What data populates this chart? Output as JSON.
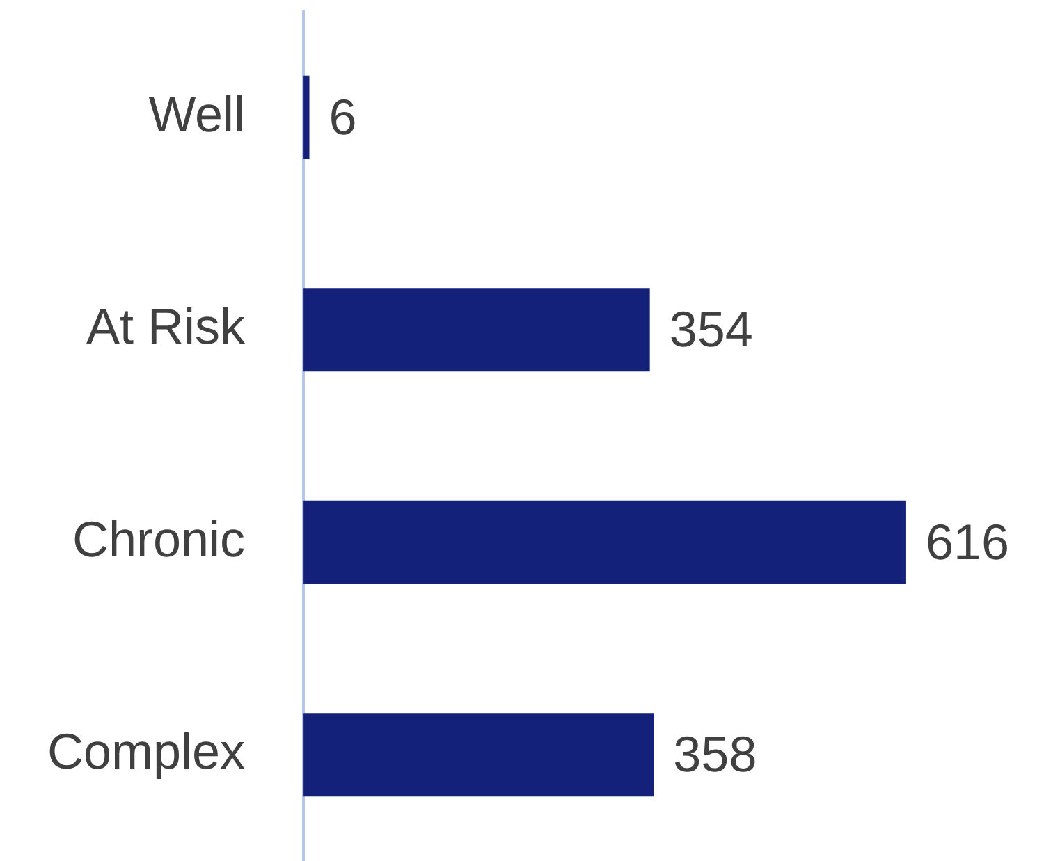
{
  "chart_data": {
    "type": "bar",
    "orientation": "horizontal",
    "categories": [
      "Well",
      "At Risk",
      "Chronic",
      "Complex"
    ],
    "values": [
      6,
      354,
      616,
      358
    ],
    "color": "#13217a",
    "data_labels": true
  }
}
